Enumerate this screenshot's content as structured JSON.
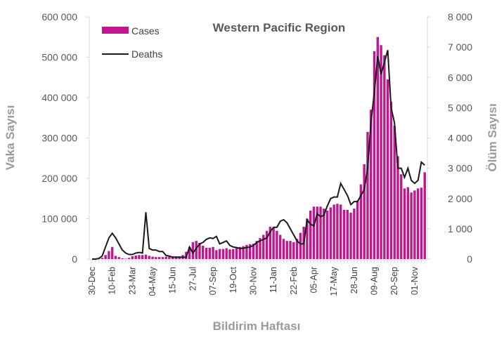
{
  "chart_data": {
    "type": "bar+line",
    "title": "Western Pacific Region",
    "xlabel": "Bildirim Haftası",
    "ylabel": "Vaka Sayısı",
    "y2label": "Ölüm Sayısı",
    "ylim": [
      0,
      600000
    ],
    "y2lim": [
      0,
      8000
    ],
    "yticks": [
      "0",
      "100 000",
      "200 000",
      "300 000",
      "400 000",
      "500 000",
      "600 000"
    ],
    "y2ticks": [
      "0",
      "1 000",
      "2 000",
      "3 000",
      "4 000",
      "5 000",
      "6 000",
      "7 000",
      "8 000"
    ],
    "xtick_labels": [
      "30-Dec",
      "10-Feb",
      "23-Mar",
      "04-May",
      "15-Jun",
      "27-Jul",
      "07-Sep",
      "19-Oct",
      "30-Nov",
      "11-Jan",
      "22-Feb",
      "05-Apr",
      "17-May",
      "28-Jun",
      "09-Aug",
      "20-Sep",
      "01-Nov"
    ],
    "xtick_every_weeks": 6,
    "legend": "top-left",
    "grid": false,
    "series": [
      {
        "name": "Cases",
        "type": "bar",
        "axis": "left",
        "color": "#C0168F",
        "values": [
          0,
          0,
          1000,
          3000,
          10000,
          20000,
          30000,
          8000,
          5000,
          2000,
          1000,
          3000,
          7000,
          9000,
          10000,
          10000,
          11000,
          8000,
          6000,
          5000,
          5000,
          5000,
          6000,
          6000,
          7000,
          7000,
          7000,
          10000,
          18000,
          30000,
          42000,
          45000,
          40000,
          33000,
          28000,
          28000,
          30000,
          22000,
          25000,
          25000,
          27000,
          24000,
          25000,
          27000,
          30000,
          32000,
          35000,
          37000,
          38000,
          45000,
          52000,
          60000,
          70000,
          80000,
          78000,
          70000,
          60000,
          50000,
          45000,
          45000,
          42000,
          50000,
          65000,
          80000,
          100000,
          120000,
          130000,
          130000,
          130000,
          125000,
          120000,
          128000,
          135000,
          137000,
          135000,
          122000,
          122000,
          115000,
          125000,
          145000,
          185000,
          235000,
          315000,
          370000,
          515000,
          550000,
          530000,
          505000,
          445000,
          390000,
          330000,
          255000,
          210000,
          175000,
          178000,
          165000,
          170000,
          175000,
          177000,
          215000
        ]
      },
      {
        "name": "Deaths",
        "type": "line",
        "axis": "right",
        "color": "#1a1a1a",
        "values": [
          0,
          0,
          20,
          100,
          400,
          700,
          850,
          700,
          500,
          300,
          200,
          150,
          150,
          200,
          220,
          200,
          1550,
          350,
          300,
          300,
          250,
          250,
          120,
          100,
          60,
          60,
          60,
          60,
          60,
          400,
          200,
          350,
          500,
          550,
          650,
          700,
          680,
          750,
          500,
          550,
          600,
          450,
          400,
          380,
          350,
          360,
          380,
          400,
          450,
          550,
          600,
          650,
          700,
          900,
          1050,
          1050,
          1250,
          1300,
          1200,
          1000,
          800,
          600,
          500,
          500,
          1300,
          1150,
          1100,
          1500,
          1400,
          1450,
          1750,
          2000,
          2050,
          2050,
          2500,
          2300,
          2100,
          1800,
          1900,
          1900,
          2100,
          2300,
          3000,
          4500,
          5500,
          6700,
          6100,
          6500,
          6900,
          5000,
          4500,
          3000,
          3000,
          2700,
          3000,
          2600,
          2500,
          2600,
          3200,
          3100
        ]
      }
    ]
  }
}
